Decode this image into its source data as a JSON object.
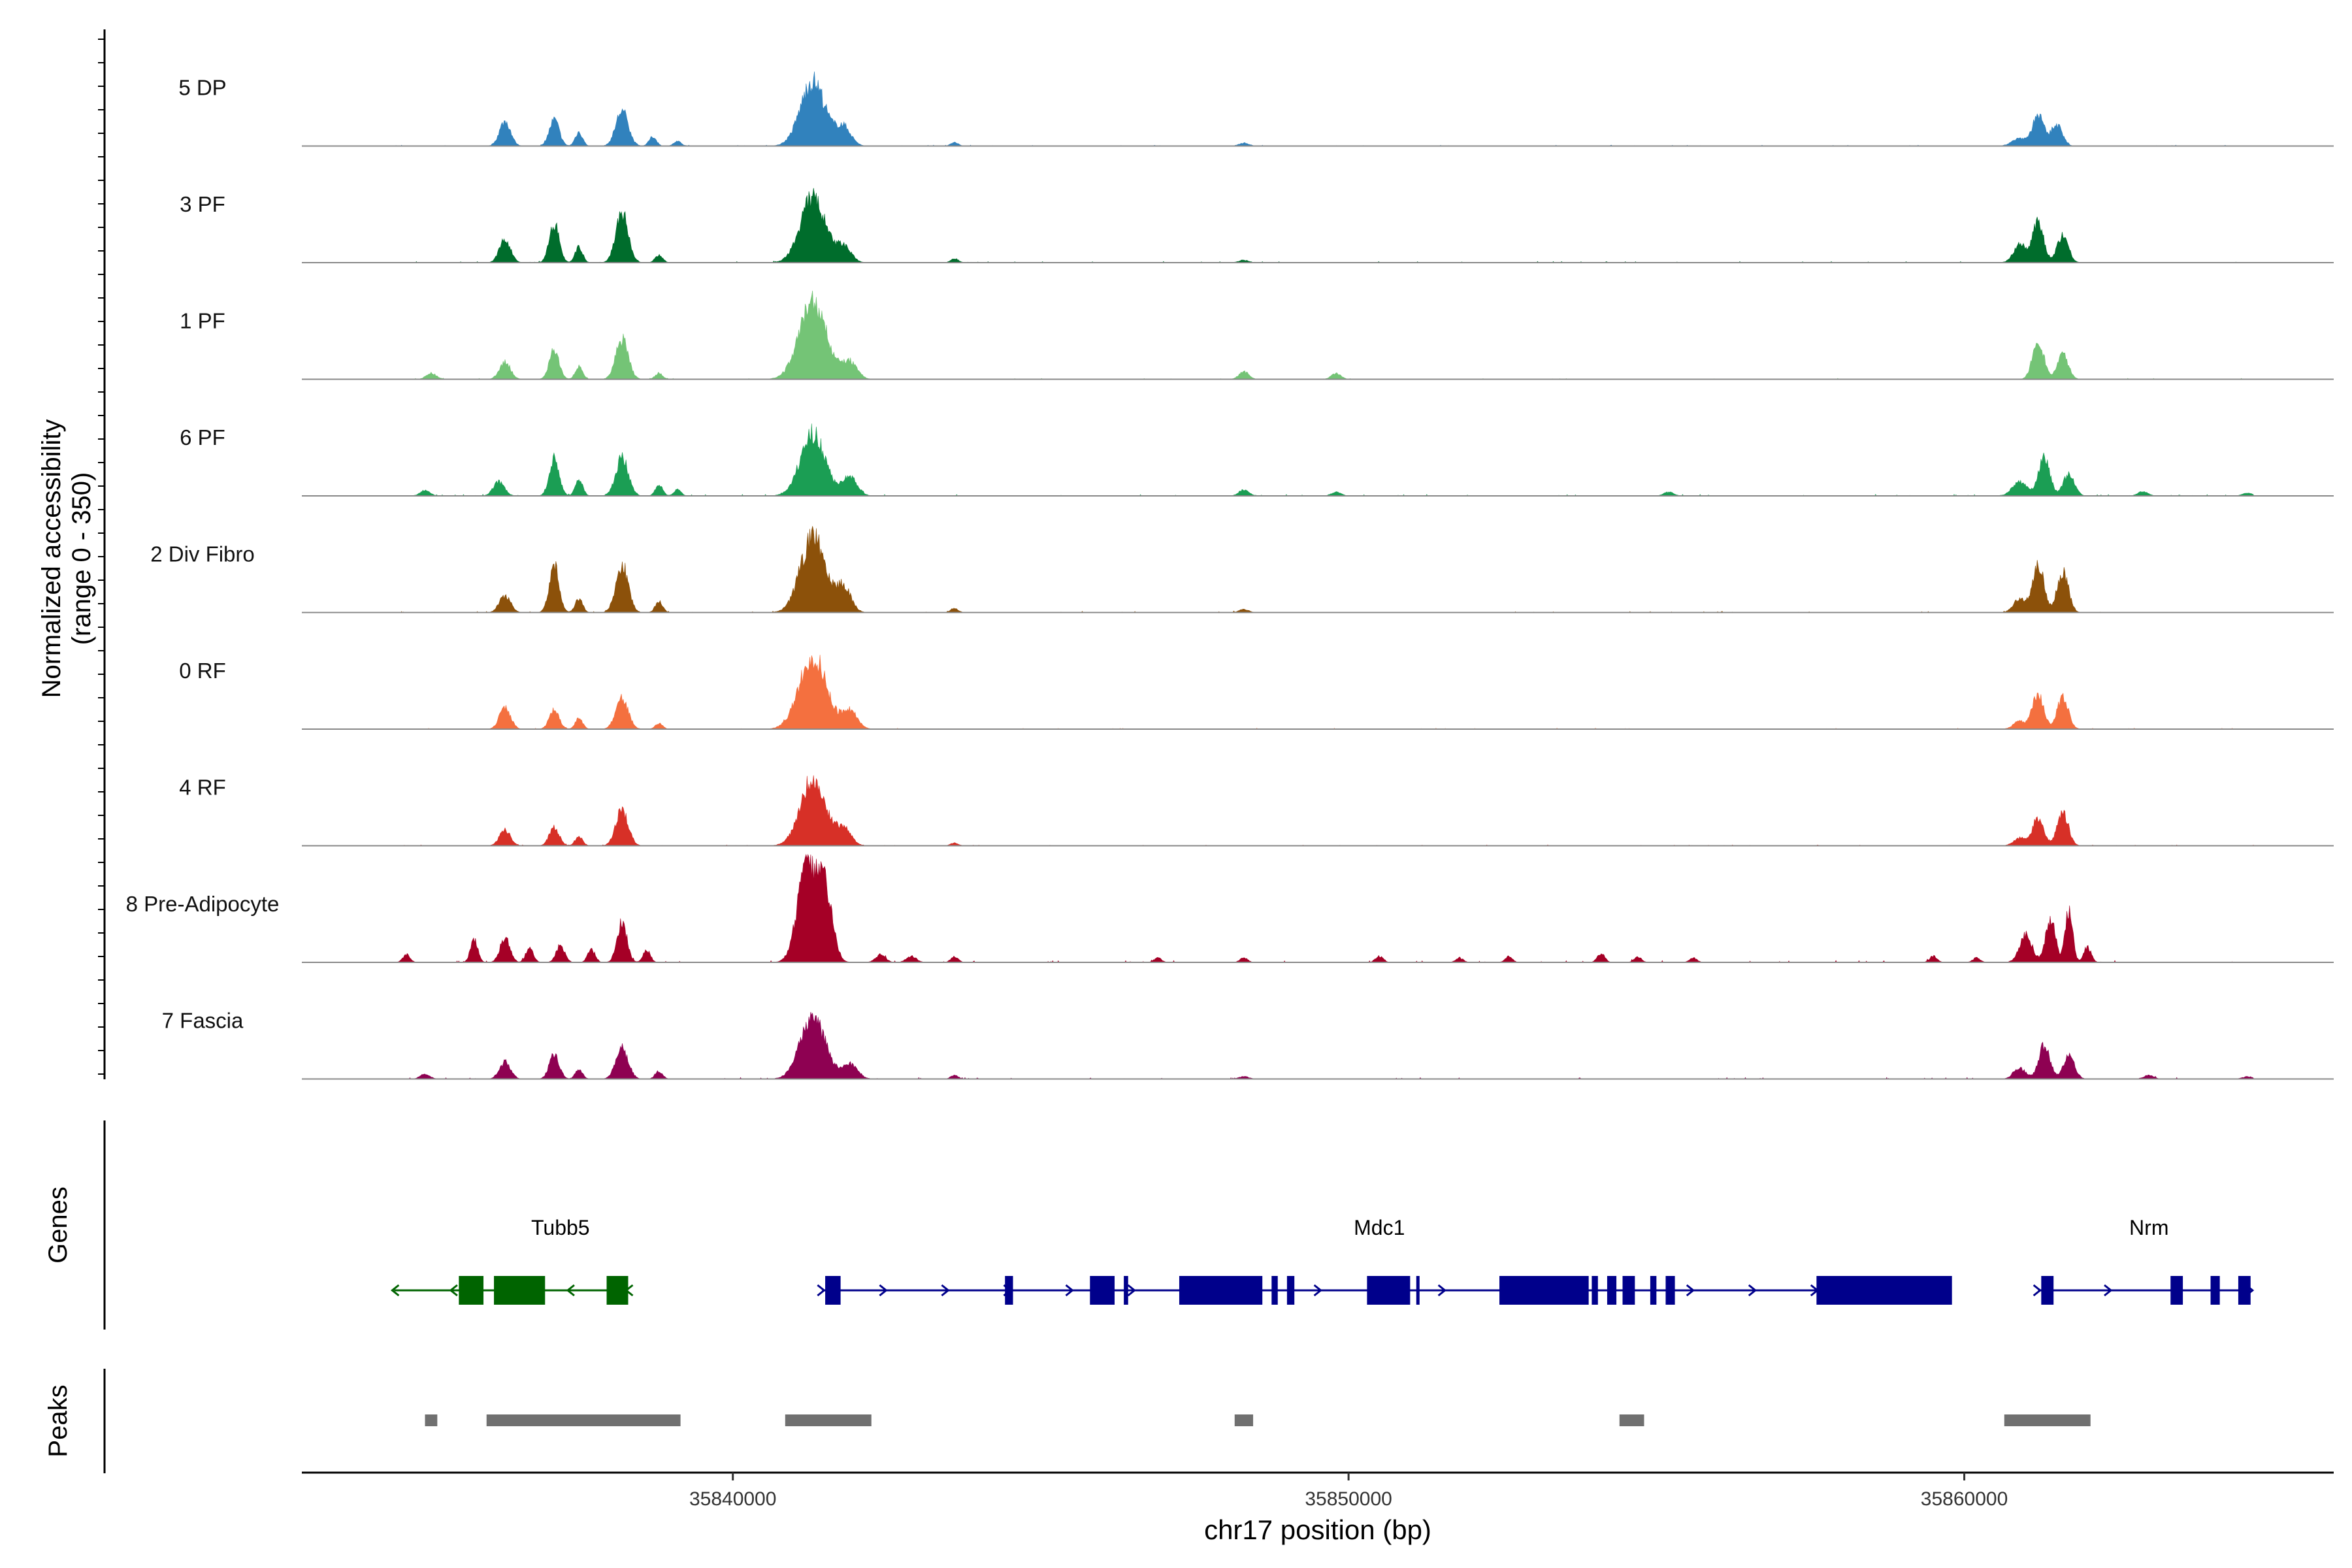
{
  "chart_data": {
    "type": "coverage-tracks",
    "chromosome": "chr17",
    "xlim": [
      35833000,
      35866000
    ],
    "xticks": [
      35840000,
      35850000,
      35860000
    ],
    "xlabel": "chr17 position (bp)",
    "ylabel": "Normalized accessibility",
    "yrange_label": "(range 0 - 350)",
    "ylim": [
      0,
      350
    ],
    "tracks": [
      {
        "name": "5 DP",
        "color": "#3182BD",
        "peaks": [
          [
            35836300,
            80,
            90
          ],
          [
            35837100,
            85,
            80
          ],
          [
            35837500,
            45,
            60
          ],
          [
            35838200,
            115,
            100
          ],
          [
            35838700,
            30,
            60
          ],
          [
            35839100,
            15,
            60
          ],
          [
            35841300,
            210,
            200
          ],
          [
            35841800,
            60,
            120
          ],
          [
            35843600,
            12,
            60
          ],
          [
            35848300,
            10,
            80
          ],
          [
            35861200,
            100,
            90
          ],
          [
            35861500,
            70,
            90
          ],
          [
            35860900,
            25,
            120
          ]
        ],
        "noise": 3
      },
      {
        "name": "3 PF",
        "color": "#006D2C",
        "peaks": [
          [
            35836300,
            75,
            90
          ],
          [
            35837100,
            125,
            80
          ],
          [
            35837500,
            50,
            60
          ],
          [
            35838200,
            160,
            100
          ],
          [
            35838800,
            25,
            60
          ],
          [
            35841300,
            210,
            200
          ],
          [
            35841800,
            50,
            120
          ],
          [
            35843600,
            14,
            60
          ],
          [
            35848300,
            8,
            80
          ],
          [
            35860900,
            60,
            100
          ],
          [
            35861200,
            130,
            90
          ],
          [
            35861600,
            90,
            90
          ]
        ],
        "noise": 4
      },
      {
        "name": "1 PF",
        "color": "#74C476",
        "peaks": [
          [
            35835100,
            20,
            80
          ],
          [
            35836300,
            55,
            90
          ],
          [
            35837100,
            95,
            80
          ],
          [
            35837500,
            40,
            60
          ],
          [
            35838200,
            130,
            100
          ],
          [
            35838800,
            20,
            60
          ],
          [
            35841300,
            250,
            220
          ],
          [
            35841900,
            55,
            120
          ],
          [
            35848300,
            25,
            80
          ],
          [
            35849800,
            18,
            80
          ],
          [
            35861200,
            125,
            90
          ],
          [
            35861600,
            80,
            90
          ]
        ],
        "noise": 3
      },
      {
        "name": "6 PF",
        "color": "#1B9E54",
        "peaks": [
          [
            35835000,
            18,
            80
          ],
          [
            35836200,
            45,
            90
          ],
          [
            35837100,
            120,
            80
          ],
          [
            35837500,
            55,
            60
          ],
          [
            35838200,
            125,
            100
          ],
          [
            35838800,
            35,
            60
          ],
          [
            35839100,
            20,
            60
          ],
          [
            35841300,
            200,
            200
          ],
          [
            35841900,
            60,
            120
          ],
          [
            35848300,
            20,
            80
          ],
          [
            35849800,
            12,
            80
          ],
          [
            35855200,
            12,
            80
          ],
          [
            35860900,
            45,
            120
          ],
          [
            35861300,
            125,
            90
          ],
          [
            35861700,
            70,
            90
          ],
          [
            35862900,
            15,
            80
          ],
          [
            35864600,
            10,
            80
          ]
        ],
        "noise": 5
      },
      {
        "name": "2 Div Fibro",
        "color": "#8C510A",
        "peaks": [
          [
            35836300,
            55,
            90
          ],
          [
            35837100,
            150,
            80
          ],
          [
            35837500,
            45,
            60
          ],
          [
            35838200,
            155,
            100
          ],
          [
            35838800,
            35,
            60
          ],
          [
            35841300,
            245,
            200
          ],
          [
            35841800,
            80,
            120
          ],
          [
            35843600,
            14,
            60
          ],
          [
            35848300,
            10,
            80
          ],
          [
            35860900,
            45,
            100
          ],
          [
            35861200,
            160,
            90
          ],
          [
            35861600,
            135,
            90
          ]
        ],
        "noise": 4
      },
      {
        "name": "0 RF",
        "color": "#F4703F",
        "peaks": [
          [
            35836300,
            70,
            90
          ],
          [
            35837100,
            60,
            80
          ],
          [
            35837500,
            35,
            60
          ],
          [
            35838200,
            100,
            100
          ],
          [
            35838800,
            18,
            60
          ],
          [
            35841300,
            235,
            220
          ],
          [
            35841900,
            60,
            120
          ],
          [
            35861200,
            115,
            90
          ],
          [
            35861600,
            105,
            90
          ],
          [
            35860900,
            25,
            100
          ]
        ],
        "noise": 3
      },
      {
        "name": "4 RF",
        "color": "#D73027",
        "peaks": [
          [
            35836300,
            50,
            90
          ],
          [
            35837100,
            60,
            80
          ],
          [
            35837500,
            30,
            60
          ],
          [
            35838200,
            115,
            100
          ],
          [
            35841300,
            220,
            200
          ],
          [
            35841800,
            55,
            120
          ],
          [
            35843600,
            10,
            60
          ],
          [
            35861200,
            90,
            90
          ],
          [
            35861600,
            110,
            90
          ],
          [
            35860900,
            25,
            100
          ]
        ],
        "noise": 3
      },
      {
        "name": "8 Pre-Adipocyte",
        "color": "#A50026",
        "peaks": [
          [
            35834700,
            25,
            60
          ],
          [
            35835800,
            75,
            60
          ],
          [
            35836300,
            80,
            80
          ],
          [
            35836700,
            50,
            60
          ],
          [
            35837200,
            55,
            70
          ],
          [
            35837700,
            40,
            60
          ],
          [
            35838200,
            130,
            80
          ],
          [
            35838600,
            40,
            60
          ],
          [
            35841200,
            310,
            150
          ],
          [
            35841500,
            220,
            120
          ],
          [
            35842400,
            25,
            80
          ],
          [
            35842900,
            20,
            80
          ],
          [
            35843600,
            18,
            60
          ],
          [
            35846900,
            15,
            60
          ],
          [
            35848300,
            15,
            60
          ],
          [
            35850500,
            20,
            60
          ],
          [
            35851800,
            15,
            60
          ],
          [
            35852600,
            18,
            60
          ],
          [
            35854100,
            30,
            60
          ],
          [
            35854700,
            18,
            60
          ],
          [
            35855600,
            14,
            60
          ],
          [
            35859500,
            20,
            60
          ],
          [
            35860200,
            15,
            60
          ],
          [
            35861000,
            90,
            100
          ],
          [
            35861400,
            140,
            80
          ],
          [
            35861700,
            170,
            60
          ],
          [
            35862000,
            50,
            60
          ]
        ],
        "noise": 6
      },
      {
        "name": "7 Fascia",
        "color": "#8E0152",
        "peaks": [
          [
            35835000,
            15,
            80
          ],
          [
            35836300,
            55,
            90
          ],
          [
            35837100,
            80,
            80
          ],
          [
            35837500,
            30,
            60
          ],
          [
            35838200,
            100,
            100
          ],
          [
            35838800,
            25,
            60
          ],
          [
            35841300,
            205,
            200
          ],
          [
            35841900,
            50,
            120
          ],
          [
            35843600,
            12,
            60
          ],
          [
            35848300,
            8,
            80
          ],
          [
            35860900,
            35,
            100
          ],
          [
            35861300,
            110,
            90
          ],
          [
            35861700,
            75,
            90
          ],
          [
            35863000,
            12,
            80
          ],
          [
            35864600,
            8,
            80
          ]
        ],
        "noise": 5
      }
    ]
  },
  "genes_panel": {
    "title": "Genes",
    "genes": [
      {
        "name": "Tubb5",
        "color": "#006400",
        "strand": "-",
        "start": 35834500,
        "end": 35838300,
        "label_pos": 35837200,
        "exons": [
          [
            35835550,
            35835950
          ],
          [
            35836120,
            35836950
          ],
          [
            35837950,
            35838300
          ]
        ]
      },
      {
        "name": "Mdc1",
        "color": "#00008B",
        "strand": "+",
        "start": 35841450,
        "end": 35859600,
        "label_pos": 35850500,
        "exons": [
          [
            35841500,
            35841750
          ],
          [
            35844420,
            35844550
          ],
          [
            35845800,
            35846200
          ],
          [
            35846350,
            35846420
          ],
          [
            35847250,
            35848600
          ],
          [
            35848750,
            35848850
          ],
          [
            35849000,
            35849120
          ],
          [
            35850300,
            35851000
          ],
          [
            35851100,
            35851150
          ],
          [
            35852450,
            35853900
          ],
          [
            35853950,
            35854050
          ],
          [
            35854200,
            35854350
          ],
          [
            35854450,
            35854650
          ],
          [
            35854900,
            35855000
          ],
          [
            35855150,
            35855300
          ],
          [
            35857600,
            35859800
          ]
        ]
      },
      {
        "name": "Nrm",
        "color": "#00008B",
        "strand": "+",
        "start": 35861200,
        "end": 35864650,
        "label_pos": 35863000,
        "exons": [
          [
            35861250,
            35861450
          ],
          [
            35863350,
            35863550
          ],
          [
            35864000,
            35864150
          ],
          [
            35864450,
            35864650
          ]
        ]
      }
    ]
  },
  "peaks_panel": {
    "title": "Peaks",
    "color": "#707070",
    "regions": [
      [
        35835000,
        35835200
      ],
      [
        35836000,
        35839150
      ],
      [
        35840850,
        35842250
      ],
      [
        35848150,
        35848450
      ],
      [
        35854400,
        35854800
      ],
      [
        35860650,
        35862050
      ]
    ]
  }
}
